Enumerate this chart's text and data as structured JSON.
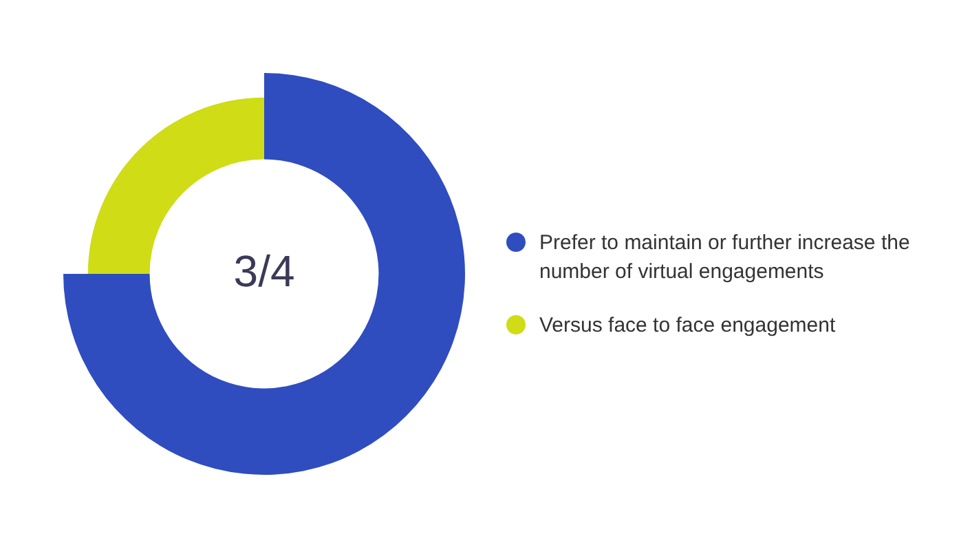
{
  "chart_data": {
    "type": "donut",
    "categories": [
      "Prefer to maintain or further increase the number of virtual engagements",
      "Versus face to face engagement"
    ],
    "values": [
      75,
      25
    ],
    "colors": [
      "#2f4dbf",
      "#cfdc16"
    ],
    "legend": "right",
    "annotations": [
      "3/4"
    ]
  }
}
